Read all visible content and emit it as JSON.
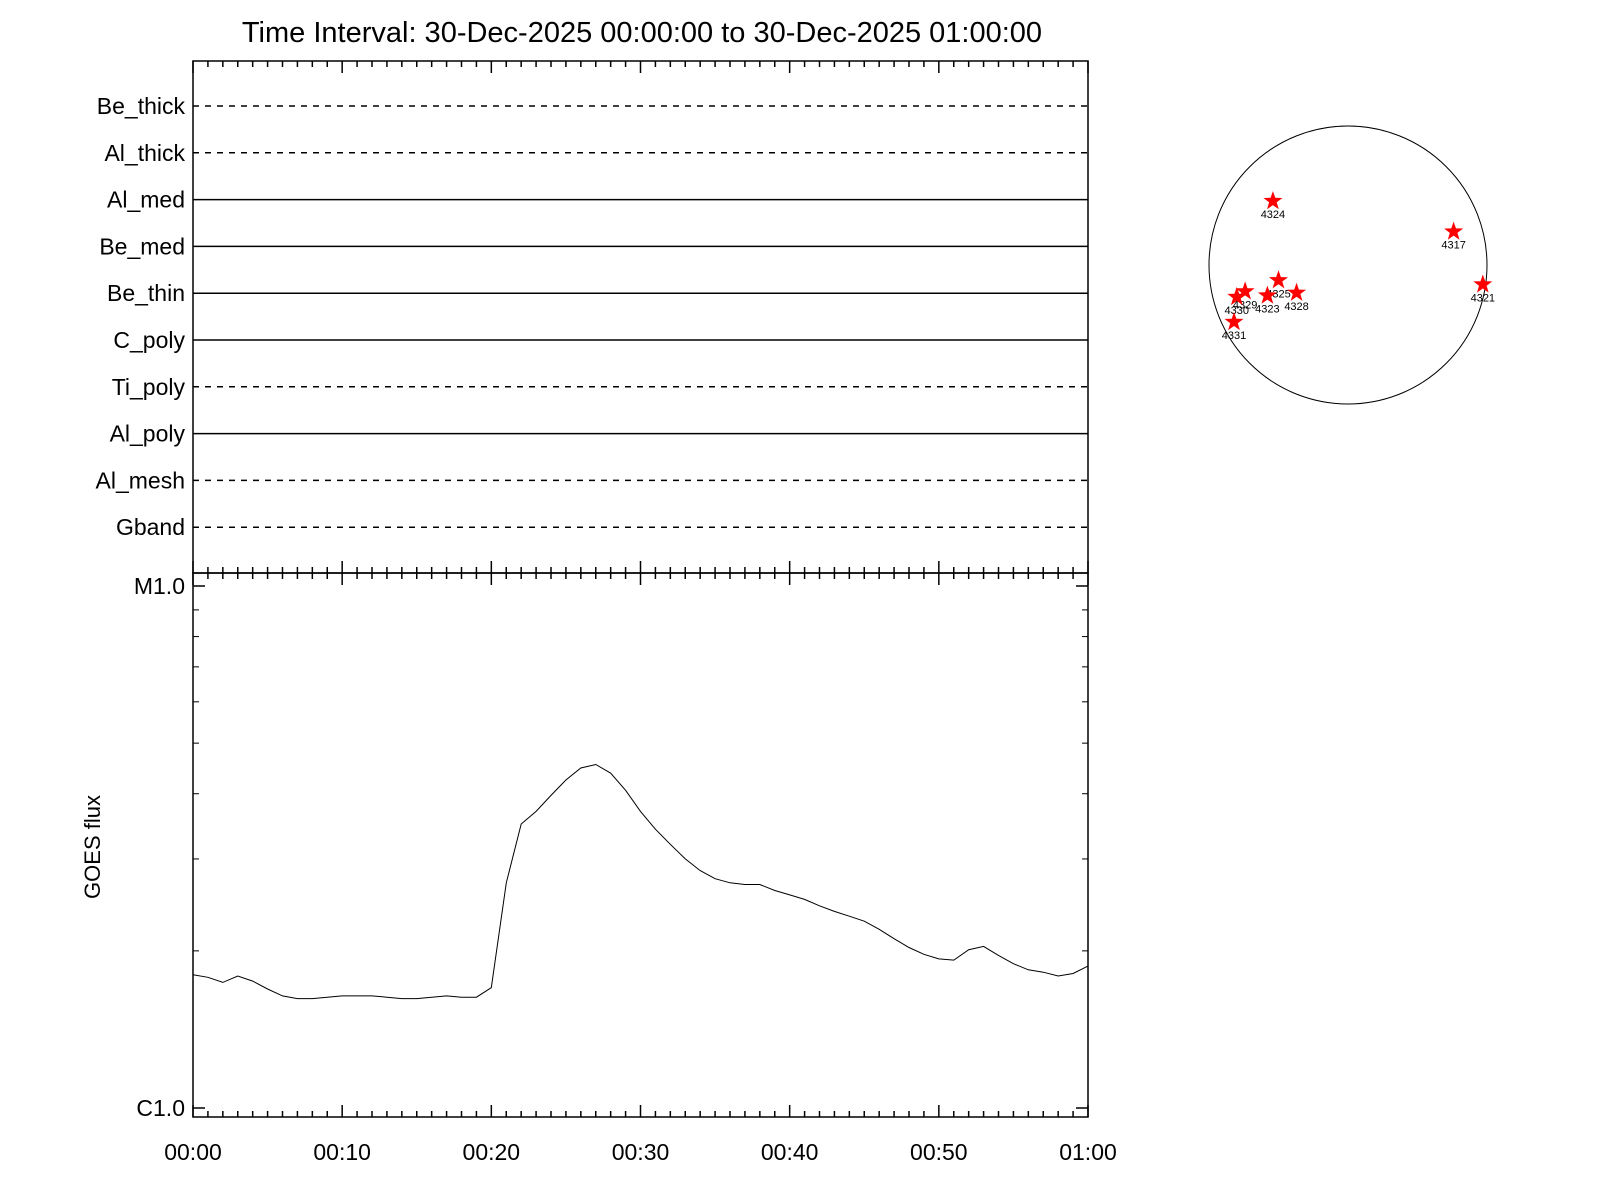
{
  "title": "Time Interval: 30-Dec-2025 00:00:00 to 30-Dec-2025 01:00:00",
  "channels": [
    {
      "name": "Be_thick",
      "style": "dashed"
    },
    {
      "name": "Al_thick",
      "style": "dashed"
    },
    {
      "name": "Al_med",
      "style": "solid"
    },
    {
      "name": "Be_med",
      "style": "solid"
    },
    {
      "name": "Be_thin",
      "style": "solid"
    },
    {
      "name": "C_poly",
      "style": "solid"
    },
    {
      "name": "Ti_poly",
      "style": "dashed"
    },
    {
      "name": "Al_poly",
      "style": "solid"
    },
    {
      "name": "Al_mesh",
      "style": "dashed"
    },
    {
      "name": "Gband",
      "style": "dashed"
    }
  ],
  "colors": {
    "line": "#000000",
    "marker": "#ff0000",
    "background": "#ffffff"
  },
  "chart_data": {
    "type": "line",
    "title": "Time Interval: 30-Dec-2025 00:00:00 to 30-Dec-2025 01:00:00",
    "xlabel": "",
    "ylabel": "GOES flux",
    "x_ticks": [
      "00:00",
      "00:10",
      "00:20",
      "00:30",
      "00:40",
      "00:50",
      "01:00"
    ],
    "xlim_minutes": [
      0,
      60
    ],
    "y_scale": "log",
    "y_ticks": [
      "C1.0",
      "M1.0"
    ],
    "ylim": [
      1e-06,
      1e-05
    ],
    "grid": false,
    "series": [
      {
        "x_minutes": [
          0,
          1,
          2,
          3,
          4,
          5,
          6,
          7,
          8,
          9,
          10,
          11,
          12,
          13,
          14,
          15,
          16,
          17,
          18,
          19,
          20,
          21,
          22,
          23,
          24,
          25,
          26,
          27,
          28,
          29,
          30,
          31,
          32,
          33,
          34,
          35,
          36,
          37,
          38,
          39,
          40,
          41,
          42,
          43,
          44,
          45,
          46,
          47,
          48,
          49,
          50,
          51,
          52,
          53,
          54,
          55,
          56,
          57,
          58,
          59,
          60
        ],
        "values": [
          1.8e-06,
          1.78e-06,
          1.74e-06,
          1.79e-06,
          1.75e-06,
          1.69e-06,
          1.64e-06,
          1.62e-06,
          1.62e-06,
          1.63e-06,
          1.64e-06,
          1.64e-06,
          1.64e-06,
          1.63e-06,
          1.62e-06,
          1.62e-06,
          1.63e-06,
          1.64e-06,
          1.63e-06,
          1.63e-06,
          1.7e-06,
          2.7e-06,
          3.5e-06,
          3.7e-06,
          3.97e-06,
          4.25e-06,
          4.48e-06,
          4.55e-06,
          4.38e-06,
          4.06e-06,
          3.7e-06,
          3.42e-06,
          3.2e-06,
          3e-06,
          2.85e-06,
          2.75e-06,
          2.7e-06,
          2.68e-06,
          2.68e-06,
          2.61e-06,
          2.56e-06,
          2.51e-06,
          2.44e-06,
          2.38e-06,
          2.33e-06,
          2.28e-06,
          2.2e-06,
          2.11e-06,
          2.03e-06,
          1.97e-06,
          1.93e-06,
          1.92e-06,
          2.01e-06,
          2.04e-06,
          1.96e-06,
          1.89e-06,
          1.84e-06,
          1.82e-06,
          1.79e-06,
          1.81e-06,
          1.87e-06
        ]
      }
    ]
  },
  "active_regions": [
    {
      "label": "4324",
      "solar_x": -0.54,
      "solar_y": 0.46
    },
    {
      "label": "4317",
      "solar_x": 0.76,
      "solar_y": 0.24
    },
    {
      "label": "4321",
      "solar_x": 0.97,
      "solar_y": -0.14
    },
    {
      "label": "4325",
      "solar_x": -0.5,
      "solar_y": -0.11
    },
    {
      "label": "4328",
      "solar_x": -0.37,
      "solar_y": -0.2
    },
    {
      "label": "4323",
      "solar_x": -0.58,
      "solar_y": -0.22
    },
    {
      "label": "4329",
      "solar_x": -0.74,
      "solar_y": -0.19
    },
    {
      "label": "4330",
      "solar_x": -0.8,
      "solar_y": -0.23
    },
    {
      "label": "4331",
      "solar_x": -0.82,
      "solar_y": -0.41
    }
  ]
}
